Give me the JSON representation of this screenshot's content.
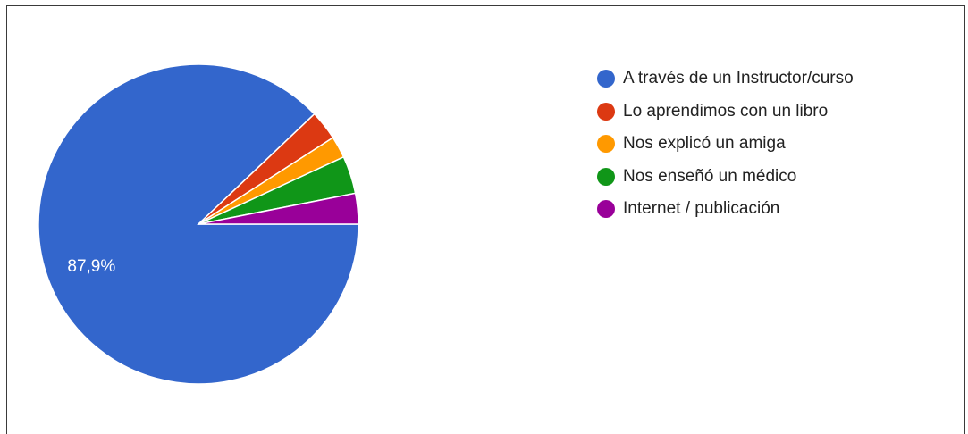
{
  "chart_data": {
    "type": "pie",
    "title": "",
    "legend_position": "right",
    "slices": [
      {
        "label": "A través de un Instructor/curso",
        "value": 87.9,
        "display": "87,9%",
        "color": "#3366cc"
      },
      {
        "label": "Lo aprendimos con un libro",
        "value": 3.0,
        "display": "",
        "color": "#dc3912"
      },
      {
        "label": "Nos explicó un amiga",
        "value": 2.2,
        "display": "",
        "color": "#ff9900"
      },
      {
        "label": "Nos enseñó un médico",
        "value": 3.8,
        "display": "",
        "color": "#109618"
      },
      {
        "label": "Internet / publicación",
        "value": 3.1,
        "display": "",
        "color": "#990099"
      }
    ]
  }
}
